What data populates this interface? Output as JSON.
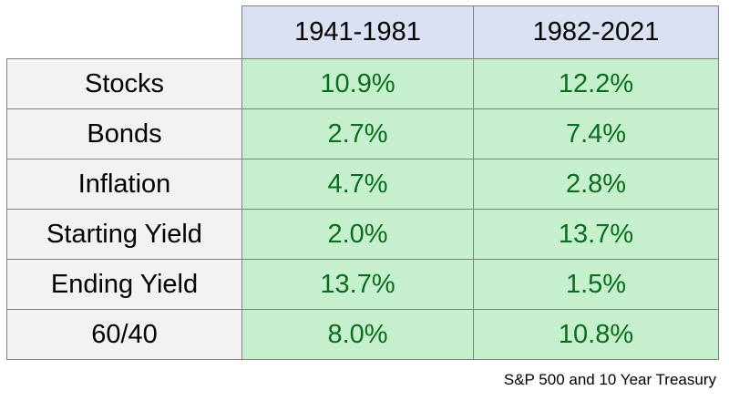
{
  "chart_data": {
    "type": "table",
    "columns": [
      "1941-1981",
      "1982-2021"
    ],
    "rows": [
      {
        "label": "Stocks",
        "values": [
          "10.9%",
          "12.2%"
        ]
      },
      {
        "label": "Bonds",
        "values": [
          "2.7%",
          "7.4%"
        ]
      },
      {
        "label": "Inflation",
        "values": [
          "4.7%",
          "2.8%"
        ]
      },
      {
        "label": "Starting Yield",
        "values": [
          "2.0%",
          "13.7%"
        ]
      },
      {
        "label": "Ending Yield",
        "values": [
          "13.7%",
          "1.5%"
        ]
      },
      {
        "label": "60/40",
        "values": [
          "8.0%",
          "10.8%"
        ]
      }
    ],
    "source_note": "S&P 500 and 10 Year Treasury"
  },
  "colors": {
    "header_fill": "#d9e1f2",
    "label_fill": "#f2f2f2",
    "value_fill": "#c6efce",
    "value_text": "#0a6e1e",
    "border": "#808080"
  }
}
